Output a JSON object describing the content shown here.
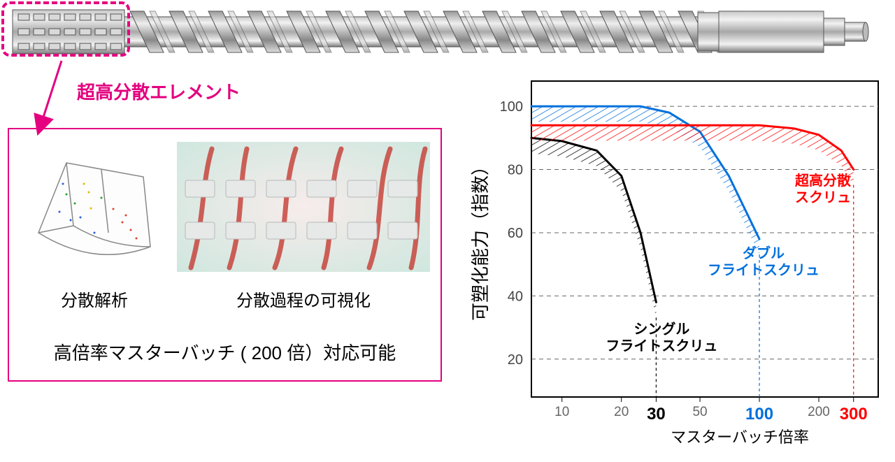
{
  "colors": {
    "accent": "#e4007f",
    "screw_body": "#b0b0b0",
    "screw_hilite": "#e8e8e8",
    "screw_shadow": "#6a6a6a",
    "series_single": "#000000",
    "series_double": "#0070dd",
    "series_super": "#ff0000",
    "grid": "#666666",
    "axis": "#000000"
  },
  "callout_label": "超高分散エレメント",
  "info_panel": {
    "left_caption": "分散解析",
    "right_caption": "分散過程の可視化",
    "bottom_caption": "高倍率マスターバッチ ( 200 倍）対応可能"
  },
  "chart": {
    "y_label": "可塑化能力（指数）",
    "x_label": "マスターバッチ倍率",
    "x_ticks": [
      10,
      20,
      30,
      50,
      100,
      200,
      300
    ],
    "x_tick_styles": {
      "10": {
        "color": "#666",
        "weight": "normal",
        "size": 19
      },
      "20": {
        "color": "#666",
        "weight": "normal",
        "size": 19
      },
      "30": {
        "color": "#000",
        "weight": "bold",
        "size": 24
      },
      "50": {
        "color": "#666",
        "weight": "normal",
        "size": 19
      },
      "100": {
        "color": "#0070dd",
        "weight": "bold",
        "size": 24
      },
      "200": {
        "color": "#666",
        "weight": "normal",
        "size": 19
      },
      "300": {
        "color": "#ff0000",
        "weight": "bold",
        "size": 24
      }
    },
    "y_ticks": [
      20,
      40,
      60,
      80,
      100
    ],
    "xlim_log": [
      7,
      400
    ],
    "ylim": [
      8,
      108
    ],
    "series": [
      {
        "name": "single",
        "label": "シングル\nフライトスクリュ",
        "label_pos": [
          32,
          28
        ],
        "label_color": "#000000",
        "color": "#000000",
        "line_width": 3,
        "hatch": true,
        "data": [
          [
            7,
            90
          ],
          [
            10,
            89
          ],
          [
            15,
            86
          ],
          [
            20,
            78
          ],
          [
            25,
            60
          ],
          [
            30,
            38
          ]
        ],
        "drop_x": 30
      },
      {
        "name": "double",
        "label": "ダブル\nフライトスクリュ",
        "label_pos": [
          105,
          52
        ],
        "label_color": "#0070dd",
        "color": "#0070dd",
        "line_width": 3,
        "hatch": true,
        "data": [
          [
            7,
            100
          ],
          [
            15,
            100
          ],
          [
            25,
            100
          ],
          [
            35,
            98
          ],
          [
            50,
            92
          ],
          [
            70,
            78
          ],
          [
            100,
            58
          ]
        ],
        "drop_x": 100
      },
      {
        "name": "super",
        "label": "超高分散\nスクリュ",
        "label_pos": [
          210,
          75
        ],
        "label_color": "#ff0000",
        "color": "#ff0000",
        "line_width": 3,
        "hatch": true,
        "data": [
          [
            7,
            94
          ],
          [
            20,
            94
          ],
          [
            50,
            94
          ],
          [
            100,
            94
          ],
          [
            150,
            93
          ],
          [
            200,
            91
          ],
          [
            260,
            86
          ],
          [
            300,
            80
          ]
        ],
        "drop_x": 300
      }
    ]
  }
}
